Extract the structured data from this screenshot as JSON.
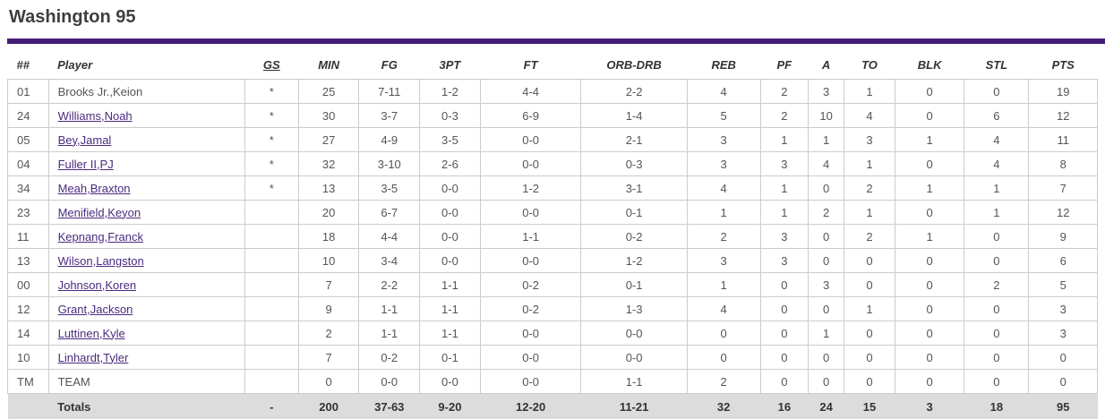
{
  "title": "Washington 95",
  "accent_color": "#431c76",
  "link_color": "#4a2b7e",
  "totals_row_bg": "#dcdcdc",
  "table": {
    "columns": [
      {
        "key": "num",
        "label": "##"
      },
      {
        "key": "player",
        "label": "Player"
      },
      {
        "key": "gs",
        "label": "GS"
      },
      {
        "key": "min",
        "label": "MIN"
      },
      {
        "key": "fg",
        "label": "FG"
      },
      {
        "key": "3pt",
        "label": "3PT"
      },
      {
        "key": "ft",
        "label": "FT"
      },
      {
        "key": "orbdrb",
        "label": "ORB-DRB"
      },
      {
        "key": "reb",
        "label": "REB"
      },
      {
        "key": "pf",
        "label": "PF"
      },
      {
        "key": "a",
        "label": "A"
      },
      {
        "key": "to",
        "label": "TO"
      },
      {
        "key": "blk",
        "label": "BLK"
      },
      {
        "key": "stl",
        "label": "STL"
      },
      {
        "key": "pts",
        "label": "PTS"
      }
    ],
    "rows": [
      {
        "num": "01",
        "player": "Brooks Jr.,Keion",
        "link": false,
        "gs": "*",
        "min": "25",
        "fg": "7-11",
        "3pt": "1-2",
        "ft": "4-4",
        "orbdrb": "2-2",
        "reb": "4",
        "pf": "2",
        "a": "3",
        "to": "1",
        "blk": "0",
        "stl": "0",
        "pts": "19"
      },
      {
        "num": "24",
        "player": "Williams,Noah",
        "link": true,
        "gs": "*",
        "min": "30",
        "fg": "3-7",
        "3pt": "0-3",
        "ft": "6-9",
        "orbdrb": "1-4",
        "reb": "5",
        "pf": "2",
        "a": "10",
        "to": "4",
        "blk": "0",
        "stl": "6",
        "pts": "12"
      },
      {
        "num": "05",
        "player": "Bey,Jamal",
        "link": true,
        "gs": "*",
        "min": "27",
        "fg": "4-9",
        "3pt": "3-5",
        "ft": "0-0",
        "orbdrb": "2-1",
        "reb": "3",
        "pf": "1",
        "a": "1",
        "to": "3",
        "blk": "1",
        "stl": "4",
        "pts": "11"
      },
      {
        "num": "04",
        "player": "Fuller II,PJ",
        "link": true,
        "gs": "*",
        "min": "32",
        "fg": "3-10",
        "3pt": "2-6",
        "ft": "0-0",
        "orbdrb": "0-3",
        "reb": "3",
        "pf": "3",
        "a": "4",
        "to": "1",
        "blk": "0",
        "stl": "4",
        "pts": "8"
      },
      {
        "num": "34",
        "player": "Meah,Braxton",
        "link": true,
        "gs": "*",
        "min": "13",
        "fg": "3-5",
        "3pt": "0-0",
        "ft": "1-2",
        "orbdrb": "3-1",
        "reb": "4",
        "pf": "1",
        "a": "0",
        "to": "2",
        "blk": "1",
        "stl": "1",
        "pts": "7"
      },
      {
        "num": "23",
        "player": "Menifield,Keyon",
        "link": true,
        "gs": "",
        "min": "20",
        "fg": "6-7",
        "3pt": "0-0",
        "ft": "0-0",
        "orbdrb": "0-1",
        "reb": "1",
        "pf": "1",
        "a": "2",
        "to": "1",
        "blk": "0",
        "stl": "1",
        "pts": "12"
      },
      {
        "num": "11",
        "player": "Kepnang,Franck",
        "link": true,
        "gs": "",
        "min": "18",
        "fg": "4-4",
        "3pt": "0-0",
        "ft": "1-1",
        "orbdrb": "0-2",
        "reb": "2",
        "pf": "3",
        "a": "0",
        "to": "2",
        "blk": "1",
        "stl": "0",
        "pts": "9"
      },
      {
        "num": "13",
        "player": "Wilson,Langston",
        "link": true,
        "gs": "",
        "min": "10",
        "fg": "3-4",
        "3pt": "0-0",
        "ft": "0-0",
        "orbdrb": "1-2",
        "reb": "3",
        "pf": "3",
        "a": "0",
        "to": "0",
        "blk": "0",
        "stl": "0",
        "pts": "6"
      },
      {
        "num": "00",
        "player": "Johnson,Koren",
        "link": true,
        "gs": "",
        "min": "7",
        "fg": "2-2",
        "3pt": "1-1",
        "ft": "0-2",
        "orbdrb": "0-1",
        "reb": "1",
        "pf": "0",
        "a": "3",
        "to": "0",
        "blk": "0",
        "stl": "2",
        "pts": "5"
      },
      {
        "num": "12",
        "player": "Grant,Jackson",
        "link": true,
        "gs": "",
        "min": "9",
        "fg": "1-1",
        "3pt": "1-1",
        "ft": "0-2",
        "orbdrb": "1-3",
        "reb": "4",
        "pf": "0",
        "a": "0",
        "to": "1",
        "blk": "0",
        "stl": "0",
        "pts": "3"
      },
      {
        "num": "14",
        "player": "Luttinen,Kyle",
        "link": true,
        "gs": "",
        "min": "2",
        "fg": "1-1",
        "3pt": "1-1",
        "ft": "0-0",
        "orbdrb": "0-0",
        "reb": "0",
        "pf": "0",
        "a": "1",
        "to": "0",
        "blk": "0",
        "stl": "0",
        "pts": "3"
      },
      {
        "num": "10",
        "player": "Linhardt,Tyler",
        "link": true,
        "gs": "",
        "min": "7",
        "fg": "0-2",
        "3pt": "0-1",
        "ft": "0-0",
        "orbdrb": "0-0",
        "reb": "0",
        "pf": "0",
        "a": "0",
        "to": "0",
        "blk": "0",
        "stl": "0",
        "pts": "0"
      },
      {
        "num": "TM",
        "player": "TEAM",
        "link": false,
        "gs": "",
        "min": "0",
        "fg": "0-0",
        "3pt": "0-0",
        "ft": "0-0",
        "orbdrb": "1-1",
        "reb": "2",
        "pf": "0",
        "a": "0",
        "to": "0",
        "blk": "0",
        "stl": "0",
        "pts": "0"
      }
    ],
    "totals": {
      "num": "",
      "player": "Totals",
      "gs": "-",
      "min": "200",
      "fg": "37-63",
      "3pt": "9-20",
      "ft": "12-20",
      "orbdrb": "11-21",
      "reb": "32",
      "pf": "16",
      "a": "24",
      "to": "15",
      "blk": "3",
      "stl": "18",
      "pts": "95"
    }
  }
}
